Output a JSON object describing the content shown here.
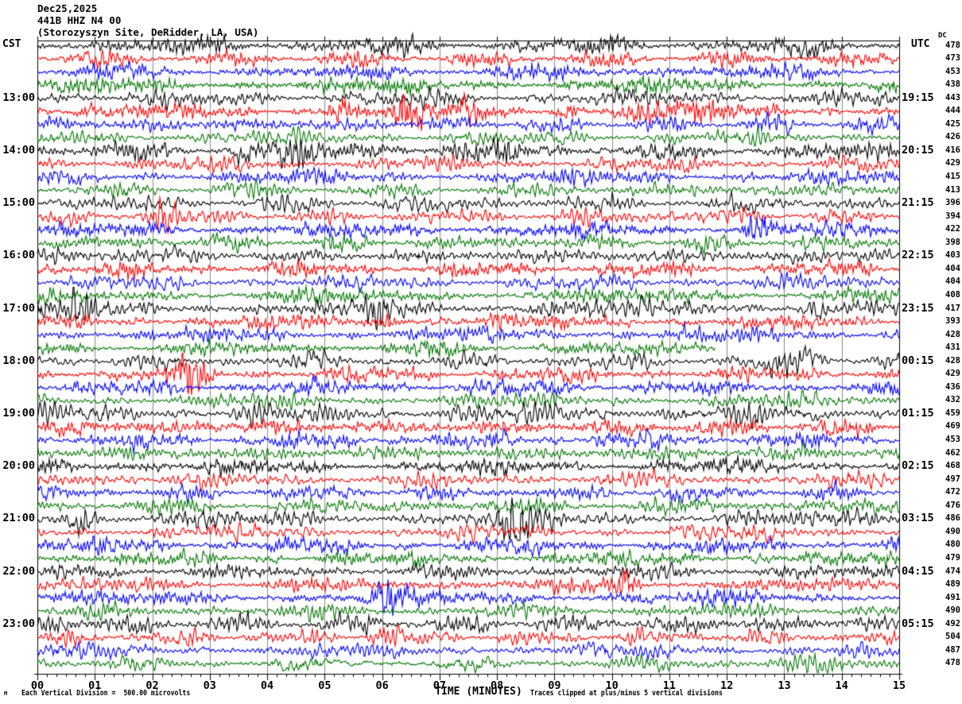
{
  "chart_data": {
    "type": "line",
    "subtype": "helicorder-seismogram",
    "title": "Dec25,2025",
    "station": "441B HHZ N4 00",
    "site": "(Storozyszyn Site, DeRidder, LA, USA)",
    "left_timezone": "CST",
    "right_timezone": "UTC",
    "dc_column_label": "DC",
    "xlabel": "TIME (MINUTES)",
    "x_range": [
      0,
      15
    ],
    "minutes_per_line": 15,
    "grid": "vertical line each minute",
    "legend_position": "none",
    "x_ticks": [
      "00",
      "01",
      "02",
      "03",
      "04",
      "05",
      "06",
      "07",
      "08",
      "09",
      "10",
      "11",
      "12",
      "13",
      "14",
      "15"
    ],
    "left_hour_labels": [
      "13:00",
      "14:00",
      "15:00",
      "16:00",
      "17:00",
      "18:00",
      "19:00",
      "20:00",
      "21:00",
      "22:00",
      "23:00"
    ],
    "right_hour_labels": [
      "19:15",
      "20:15",
      "21:15",
      "22:15",
      "23:15",
      "00:15",
      "01:15",
      "02:15",
      "03:15",
      "04:15",
      "05:15"
    ],
    "color_cycle": [
      "#000000",
      "#ff0000",
      "#0000ff",
      "#007700"
    ],
    "seed": 1337,
    "base_amp": 2.1,
    "rows": [
      {
        "dc": 478,
        "a": 1.15
      },
      {
        "dc": 473
      },
      {
        "dc": 453
      },
      {
        "dc": 438
      },
      {
        "dc": 443,
        "a": 1.1
      },
      {
        "dc": 444,
        "ev": [
          [
            5.2,
            2.6
          ],
          [
            6.5,
            2.0
          ],
          [
            7.6,
            1.6
          ],
          [
            9.3,
            2.2
          ],
          [
            10.5,
            2.2
          ],
          [
            11.5,
            1.5
          ]
        ]
      },
      {
        "dc": 425
      },
      {
        "dc": 426
      },
      {
        "dc": 416,
        "a": 1.15,
        "ev": [
          [
            3.6,
            1.5
          ],
          [
            4.5,
            2.2
          ],
          [
            6.1,
            1.8
          ],
          [
            8.2,
            1.4
          ]
        ]
      },
      {
        "dc": 429
      },
      {
        "dc": 415
      },
      {
        "dc": 413
      },
      {
        "dc": 396,
        "a": 1.1
      },
      {
        "dc": 394,
        "ev": [
          [
            2.2,
            2.2
          ],
          [
            10.4,
            1.5
          ]
        ]
      },
      {
        "dc": 422,
        "ev": [
          [
            12.5,
            2.2
          ]
        ]
      },
      {
        "dc": 398
      },
      {
        "dc": 403,
        "ev": [
          [
            1.5,
            2.2
          ],
          [
            14.6,
            1.4
          ]
        ]
      },
      {
        "dc": 404
      },
      {
        "dc": 404
      },
      {
        "dc": 408
      },
      {
        "dc": 417,
        "a": 1.15,
        "ev": [
          [
            0.7,
            1.8
          ],
          [
            6.0,
            1.5
          ],
          [
            9.0,
            1.5
          ],
          [
            13.7,
            1.8
          ]
        ]
      },
      {
        "dc": 393,
        "ev": [
          [
            6.2,
            1.8
          ]
        ]
      },
      {
        "dc": 428
      },
      {
        "dc": 431,
        "end": 11.8
      },
      {
        "dc": 428,
        "ev": [
          [
            13.0,
            1.5
          ],
          [
            13.6,
            1.5
          ]
        ]
      },
      {
        "dc": 429,
        "ev": [
          [
            2.7,
            2.4
          ]
        ]
      },
      {
        "dc": 436
      },
      {
        "dc": 432
      },
      {
        "dc": 459,
        "a": 1.3
      },
      {
        "dc": 469,
        "a": 1.1
      },
      {
        "dc": 453,
        "a": 1.1
      },
      {
        "dc": 462,
        "a": 1.05
      },
      {
        "dc": 468,
        "ev": [
          [
            1.4,
            1.3
          ]
        ]
      },
      {
        "dc": 497,
        "ev": [
          [
            1.5,
            1.8
          ]
        ]
      },
      {
        "dc": 472
      },
      {
        "dc": 476
      },
      {
        "dc": 486,
        "a": 1.2,
        "ev": [
          [
            0.8,
            2.2
          ],
          [
            8.3,
            2.4
          ]
        ]
      },
      {
        "dc": 490
      },
      {
        "dc": 480
      },
      {
        "dc": 479
      },
      {
        "dc": 474
      },
      {
        "dc": 489,
        "ev": [
          [
            10.3,
            2.8
          ]
        ]
      },
      {
        "dc": 491,
        "ev": [
          [
            6.1,
            1.6
          ]
        ]
      },
      {
        "dc": 490
      },
      {
        "dc": 492,
        "a": 1.2,
        "ev": [
          [
            0.4,
            1.6
          ]
        ]
      },
      {
        "dc": 504,
        "ev": [
          [
            6.0,
            1.4
          ]
        ]
      },
      {
        "dc": 487
      },
      {
        "dc": 478
      }
    ],
    "notes": {
      "watermark": "M",
      "left": "Each Vertical Division =  500.00 microvolts",
      "right": "Traces clipped at plus/minus 5 vertical divisions"
    }
  }
}
